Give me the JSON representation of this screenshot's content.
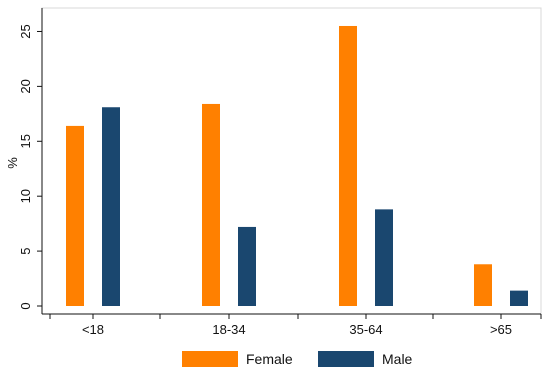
{
  "chart_data": {
    "type": "bar",
    "categories": [
      "<18",
      "18-34",
      "35-64",
      ">65"
    ],
    "series": [
      {
        "name": "Female",
        "color": "#ff8000",
        "values": [
          16.4,
          18.4,
          25.5,
          3.8
        ]
      },
      {
        "name": "Male",
        "color": "#1a476f",
        "values": [
          18.1,
          7.2,
          8.8,
          1.4
        ]
      }
    ],
    "ylabel": "%",
    "xlabel": "",
    "ylim": [
      0,
      26.5
    ],
    "yticks": [
      0,
      5,
      10,
      15,
      20,
      25
    ],
    "legend_position": "bottom",
    "grid": false
  }
}
